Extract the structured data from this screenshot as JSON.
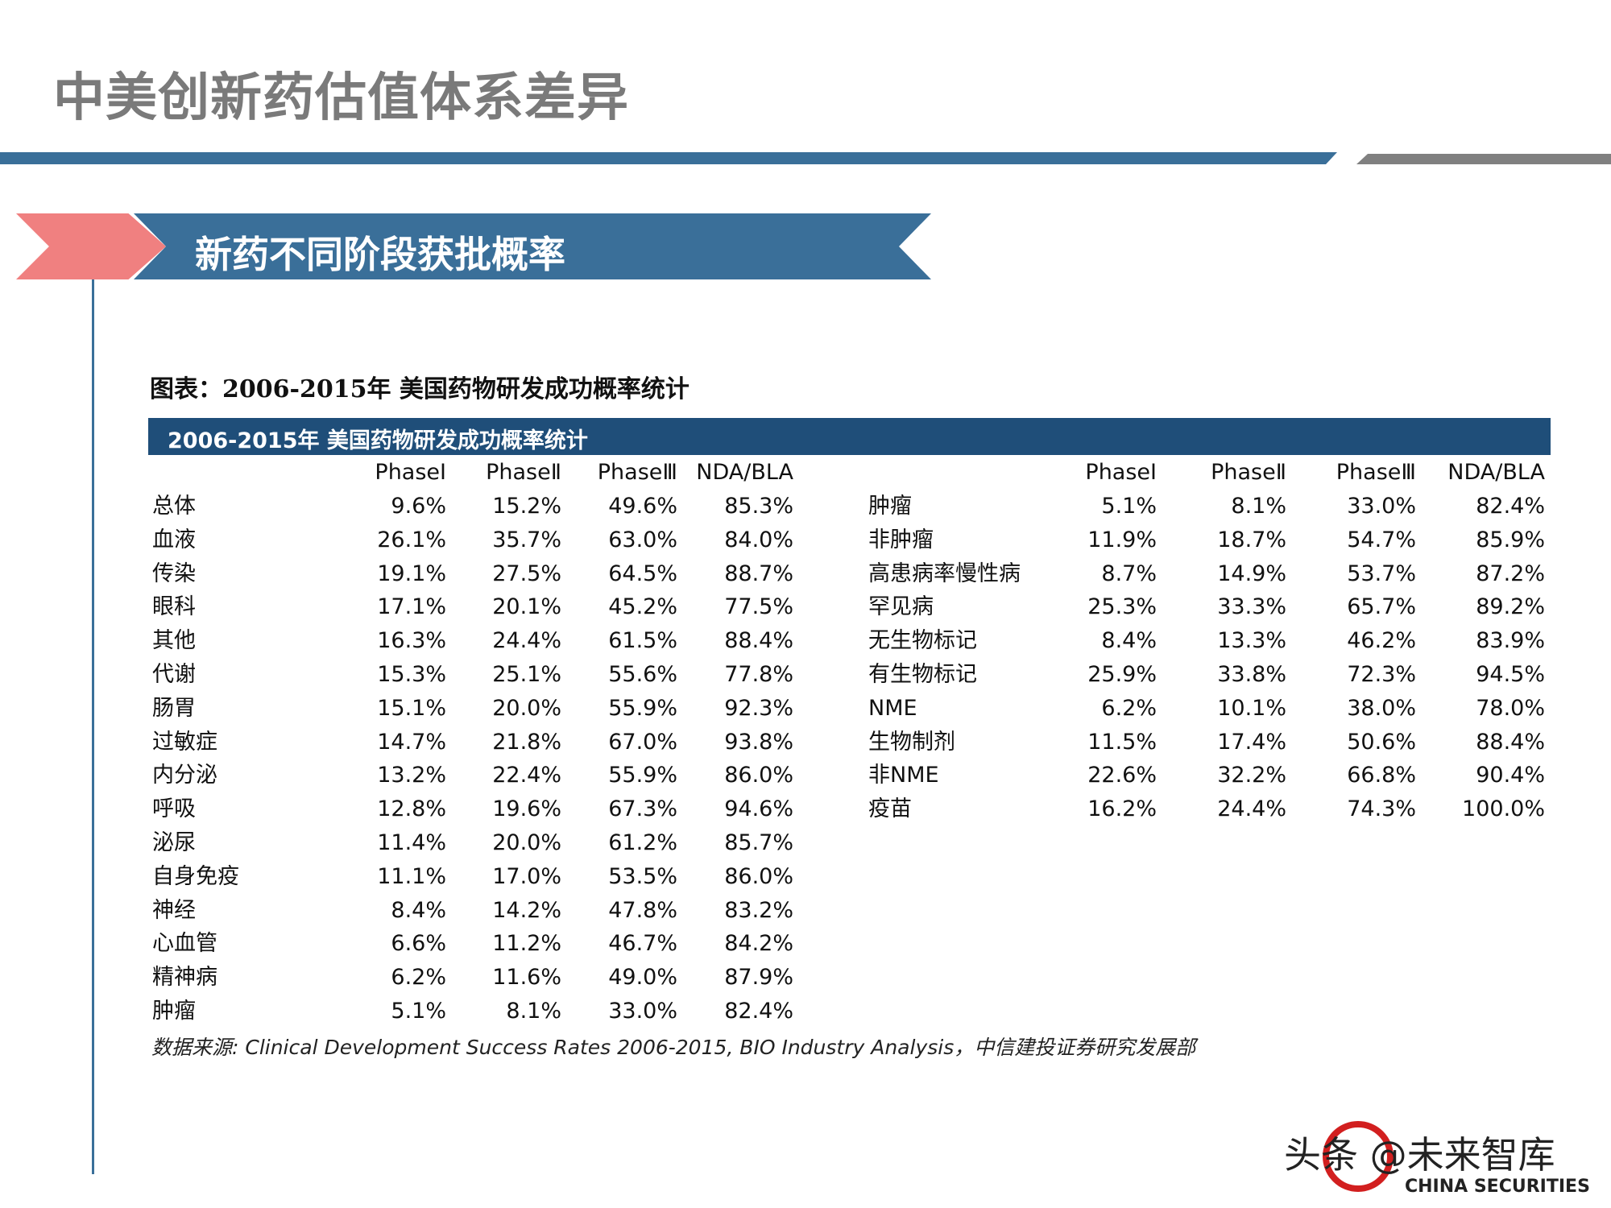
{
  "title": "中美创新药估值体系差异",
  "banner": "新药不同阶段获批概率",
  "chart_title": "图表：2006-2015年 美国药物研发成功概率统计",
  "table": {
    "header": "2006-2015年 美国药物研发成功概率统计",
    "columns": [
      "PhaseⅠ",
      "PhaseⅡ",
      "PhaseⅢ",
      "NDA/BLA"
    ],
    "left_rows": [
      [
        "总体",
        "9.6%",
        "15.2%",
        "49.6%",
        "85.3%"
      ],
      [
        "血液",
        "26.1%",
        "35.7%",
        "63.0%",
        "84.0%"
      ],
      [
        "传染",
        "19.1%",
        "27.5%",
        "64.5%",
        "88.7%"
      ],
      [
        "眼科",
        "17.1%",
        "20.1%",
        "45.2%",
        "77.5%"
      ],
      [
        "其他",
        "16.3%",
        "24.4%",
        "61.5%",
        "88.4%"
      ],
      [
        "代谢",
        "15.3%",
        "25.1%",
        "55.6%",
        "77.8%"
      ],
      [
        "肠胃",
        "15.1%",
        "20.0%",
        "55.9%",
        "92.3%"
      ],
      [
        "过敏症",
        "14.7%",
        "21.8%",
        "67.0%",
        "93.8%"
      ],
      [
        "内分泌",
        "13.2%",
        "22.4%",
        "55.9%",
        "86.0%"
      ],
      [
        "呼吸",
        "12.8%",
        "19.6%",
        "67.3%",
        "94.6%"
      ],
      [
        "泌尿",
        "11.4%",
        "20.0%",
        "61.2%",
        "85.7%"
      ],
      [
        "自身免疫",
        "11.1%",
        "17.0%",
        "53.5%",
        "86.0%"
      ],
      [
        "神经",
        "8.4%",
        "14.2%",
        "47.8%",
        "83.2%"
      ],
      [
        "心血管",
        "6.6%",
        "11.2%",
        "46.7%",
        "84.2%"
      ],
      [
        "精神病",
        "6.2%",
        "11.6%",
        "49.0%",
        "87.9%"
      ],
      [
        "肿瘤",
        "5.1%",
        "8.1%",
        "33.0%",
        "82.4%"
      ]
    ],
    "right_rows": [
      [
        "肿瘤",
        "5.1%",
        "8.1%",
        "33.0%",
        "82.4%"
      ],
      [
        "非肿瘤",
        "11.9%",
        "18.7%",
        "54.7%",
        "85.9%"
      ],
      [
        "高患病率慢性病",
        "8.7%",
        "14.9%",
        "53.7%",
        "87.2%"
      ],
      [
        "罕见病",
        "25.3%",
        "33.3%",
        "65.7%",
        "89.2%"
      ],
      [
        "无生物标记",
        "8.4%",
        "13.3%",
        "46.2%",
        "83.9%"
      ],
      [
        "有生物标记",
        "25.9%",
        "33.8%",
        "72.3%",
        "94.5%"
      ],
      [
        "NME",
        "6.2%",
        "10.1%",
        "38.0%",
        "78.0%"
      ],
      [
        "生物制剂",
        "11.5%",
        "17.4%",
        "50.6%",
        "88.4%"
      ],
      [
        "非NME",
        "22.6%",
        "32.2%",
        "66.8%",
        "90.4%"
      ],
      [
        "疫苗",
        "16.2%",
        "24.4%",
        "74.3%",
        "100.0%"
      ]
    ]
  },
  "source": "数据来源: Clinical Development Success Rates 2006-2015, BIO Industry Analysis，中信建投证券研究发展部",
  "watermark": {
    "text": "头条 @未来智库",
    "logo_text": "中信建投证券 CHINA SECURITIES"
  },
  "colors": {
    "accent_blue": "#3a6f99",
    "header_blue": "#1f4e79",
    "pink": "#f08080",
    "title_gray": "#7a7a7a"
  }
}
